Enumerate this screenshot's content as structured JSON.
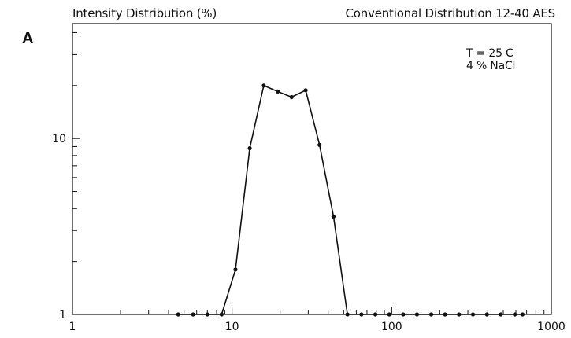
{
  "panel_letter": "A",
  "header": {
    "left": "Intensity Distribution (%)",
    "right": "Conventional Distribution 12-40 AES"
  },
  "annotations": [
    "T = 25 C",
    "4 % NaCl"
  ],
  "chart_data": {
    "type": "line",
    "xscale": "log",
    "yscale": "log",
    "xlim": [
      1,
      1000
    ],
    "ylim": [
      1,
      45
    ],
    "xticks": [
      {
        "value": 1,
        "label": "1"
      },
      {
        "value": 10,
        "label": "10"
      },
      {
        "value": 100,
        "label": "100"
      },
      {
        "value": 1000,
        "label": "1000"
      }
    ],
    "yticks": [
      {
        "value": 1,
        "label": "1"
      },
      {
        "value": 10,
        "label": "10"
      }
    ],
    "grid": false,
    "series": [
      {
        "x": [
          4.6,
          5.7,
          7.0,
          8.6,
          10.5,
          12.9,
          15.8,
          19.3,
          23.6,
          28.9,
          35.3,
          43.2,
          52.8,
          64.6,
          79.0,
          96.6,
          118,
          144,
          177,
          216,
          264,
          323,
          395,
          483,
          591,
          660
        ],
        "y": [
          1.0,
          1.0,
          1.0,
          1.0,
          1.8,
          8.8,
          20.0,
          18.5,
          17.2,
          18.8,
          9.2,
          3.6,
          1.0,
          1.0,
          1.0,
          1.0,
          1.0,
          1.0,
          1.0,
          1.0,
          1.0,
          1.0,
          1.0,
          1.0,
          1.0,
          1.0
        ]
      }
    ]
  }
}
